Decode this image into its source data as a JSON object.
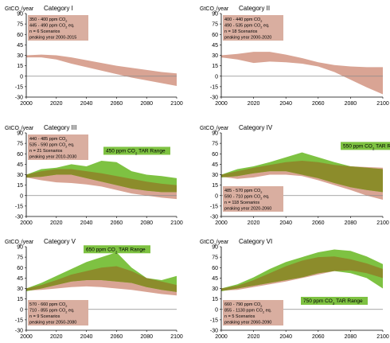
{
  "colors": {
    "pink": "#d9a494",
    "green": "#7ec242",
    "olive": "#8c8c2b",
    "infobox": "#d9aea0",
    "tarbox": "#7ec242",
    "axis": "#000000",
    "zero": "#8a8a8a"
  },
  "chart_data": [
    {
      "type": "area",
      "title": "Category I",
      "unit": "GtCO₂/year",
      "x": [
        2000,
        2010,
        2020,
        2030,
        2040,
        2050,
        2060,
        2070,
        2080,
        2090,
        2100
      ],
      "ylim": [
        -30,
        90
      ],
      "ytick_step": 15,
      "xticks": [
        2000,
        2020,
        2040,
        2060,
        2080,
        2100
      ],
      "yticks": [
        -30,
        -15,
        0,
        15,
        30,
        45,
        60,
        75,
        90
      ],
      "info": [
        "350 - 400 ppm CO₂",
        "445 - 490 ppm CO₂ eq.",
        "n = 6 Scenarios",
        "peaking year 2000-2015"
      ],
      "info_anchor": "top-left",
      "post_sres": {
        "upper": [
          30,
          31,
          30,
          27,
          23,
          19,
          15,
          12,
          9,
          6,
          4
        ],
        "lower": [
          27,
          27,
          24,
          18,
          13,
          8,
          3,
          -2,
          -6,
          -10,
          -14
        ]
      },
      "tar": null
    },
    {
      "type": "area",
      "title": "Category II",
      "unit": "GtCO₂/year",
      "x": [
        2000,
        2010,
        2020,
        2030,
        2040,
        2050,
        2060,
        2070,
        2080,
        2090,
        2100
      ],
      "ylim": [
        -30,
        90
      ],
      "ytick_step": 15,
      "xticks": [
        2000,
        2020,
        2040,
        2060,
        2080,
        2100
      ],
      "yticks": [
        -30,
        -15,
        0,
        15,
        30,
        45,
        60,
        75,
        90
      ],
      "info": [
        "400 - 440 ppm CO₂",
        "490 - 535 ppm CO₂ eq.",
        "n = 18 Scenarios",
        "peaking year 2000-2020"
      ],
      "info_anchor": "top-left",
      "post_sres": {
        "upper": [
          30,
          32,
          35,
          35,
          31,
          26,
          20,
          16,
          14,
          13,
          13
        ],
        "lower": [
          27,
          24,
          19,
          21,
          20,
          18,
          14,
          6,
          -5,
          -16,
          -26
        ]
      },
      "tar": null
    },
    {
      "type": "area",
      "title": "Category III",
      "unit": "GtCO₂/year",
      "x": [
        2000,
        2010,
        2020,
        2030,
        2040,
        2050,
        2060,
        2070,
        2080,
        2090,
        2100
      ],
      "ylim": [
        -30,
        90
      ],
      "ytick_step": 15,
      "xticks": [
        2000,
        2020,
        2040,
        2060,
        2080,
        2100
      ],
      "yticks": [
        -30,
        -15,
        0,
        15,
        30,
        45,
        60,
        75,
        90
      ],
      "info": [
        "440 - 485 ppm CO₂",
        "535 - 590 ppm CO₂ eq.",
        "n = 21 Scenarios",
        "peaking year 2010-2030"
      ],
      "info_anchor": "top-left",
      "post_sres": {
        "upper": [
          30,
          35,
          38,
          38,
          35,
          32,
          28,
          24,
          20,
          17,
          15
        ],
        "lower": [
          26,
          22,
          19,
          18,
          16,
          13,
          8,
          3,
          0,
          -3,
          -5
        ]
      },
      "tar": {
        "label": "450 ppm CO₂ TAR Range",
        "upper": [
          30,
          38,
          40,
          45,
          42,
          50,
          48,
          35,
          30,
          28,
          25
        ],
        "lower": [
          26,
          27,
          30,
          30,
          25,
          20,
          15,
          10,
          7,
          5,
          5
        ]
      }
    },
    {
      "type": "area",
      "title": "Category IV",
      "unit": "GtCO₂/year",
      "x": [
        2000,
        2010,
        2020,
        2030,
        2040,
        2050,
        2060,
        2070,
        2080,
        2090,
        2100
      ],
      "ylim": [
        -30,
        90
      ],
      "ytick_step": 15,
      "xticks": [
        2000,
        2020,
        2040,
        2060,
        2080,
        2100
      ],
      "yticks": [
        -30,
        -15,
        0,
        15,
        30,
        45,
        60,
        75,
        90
      ],
      "info": [
        "485 - 570 ppm CO₂",
        "590 - 710 ppm CO₂ eq.",
        "n = 118 Scenarios",
        "peaking year 2020-2060"
      ],
      "info_anchor": "bottom-left",
      "post_sres": {
        "upper": [
          30,
          35,
          40,
          44,
          48,
          50,
          48,
          44,
          42,
          41,
          40
        ],
        "lower": [
          27,
          24,
          26,
          30,
          30,
          28,
          22,
          15,
          8,
          0,
          -6
        ]
      },
      "tar": {
        "label": "550 ppm CO₂ TAR Range",
        "upper": [
          30,
          38,
          42,
          48,
          55,
          62,
          55,
          48,
          42,
          40,
          38
        ],
        "lower": [
          26,
          28,
          32,
          35,
          35,
          30,
          25,
          18,
          12,
          8,
          5
        ]
      }
    },
    {
      "type": "area",
      "title": "Category V",
      "unit": "GtCO₂/year",
      "x": [
        2000,
        2010,
        2020,
        2030,
        2040,
        2050,
        2060,
        2070,
        2080,
        2090,
        2100
      ],
      "ylim": [
        -30,
        90
      ],
      "ytick_step": 15,
      "xticks": [
        2000,
        2020,
        2040,
        2060,
        2080,
        2100
      ],
      "yticks": [
        -30,
        -15,
        0,
        15,
        30,
        45,
        60,
        75,
        90
      ],
      "info": [
        "570 - 660 ppm CO₂",
        "710 - 855 ppm CO₂ eq.",
        "n = 9 Scenarios",
        "peaking year 2050-2080"
      ],
      "info_anchor": "bottom-left",
      "post_sres": {
        "upper": [
          30,
          35,
          42,
          50,
          55,
          60,
          62,
          55,
          45,
          40,
          35
        ],
        "lower": [
          27,
          28,
          30,
          32,
          33,
          32,
          30,
          28,
          25,
          22,
          20
        ]
      },
      "tar": {
        "label": "650 ppm CO₂ TAR Range",
        "upper": [
          30,
          38,
          48,
          58,
          68,
          75,
          82,
          60,
          45,
          42,
          48
        ],
        "lower": [
          26,
          30,
          35,
          40,
          42,
          42,
          40,
          38,
          32,
          28,
          25
        ]
      }
    },
    {
      "type": "area",
      "title": "Category VI",
      "unit": "GtCO₂/year",
      "x": [
        2000,
        2010,
        2020,
        2030,
        2040,
        2050,
        2060,
        2070,
        2080,
        2090,
        2100
      ],
      "ylim": [
        -30,
        90
      ],
      "ytick_step": 15,
      "xticks": [
        2000,
        2020,
        2040,
        2060,
        2080,
        2100
      ],
      "yticks": [
        -30,
        -15,
        0,
        15,
        30,
        45,
        60,
        75,
        90
      ],
      "info": [
        "660 - 790 ppm CO₂",
        "855 - 1130 ppm CO₂ eq.",
        "n = 5 Scenarios",
        "peaking year 2060-2090"
      ],
      "info_anchor": "bottom-left",
      "post_sres": {
        "upper": [
          30,
          34,
          42,
          52,
          62,
          70,
          75,
          76,
          72,
          66,
          58
        ],
        "lower": [
          27,
          28,
          32,
          36,
          40,
          45,
          50,
          55,
          56,
          52,
          45
        ]
      },
      "tar": {
        "label": "750 ppm CO₂ TAR Range",
        "upper": [
          30,
          36,
          46,
          58,
          68,
          75,
          82,
          86,
          84,
          76,
          65
        ],
        "lower": [
          26,
          30,
          34,
          38,
          42,
          46,
          52,
          55,
          52,
          45,
          30
        ]
      }
    }
  ]
}
